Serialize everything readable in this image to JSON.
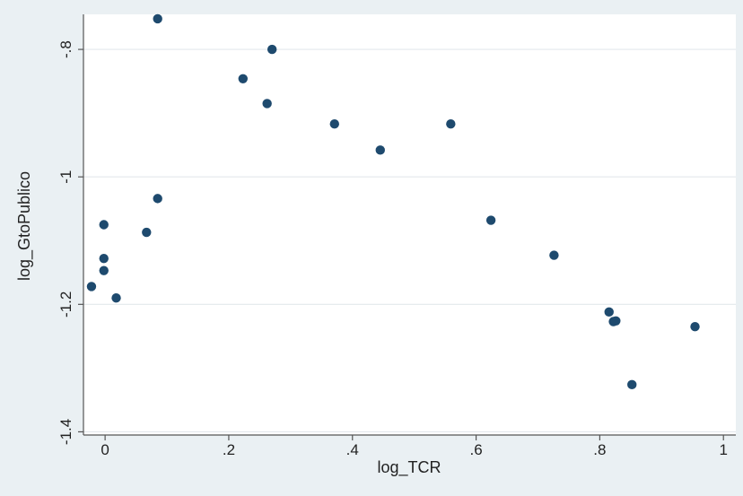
{
  "chart_data": {
    "type": "scatter",
    "xlabel": "log_TCR",
    "ylabel": "log_GtoPublico",
    "xlim": [
      -0.035,
      1.02
    ],
    "ylim": [
      -1.405,
      -0.745
    ],
    "x_ticks": [
      0,
      0.2,
      0.4,
      0.6,
      0.8,
      1
    ],
    "x_tick_labels": [
      "0",
      ".2",
      ".4",
      ".6",
      ".8",
      "1"
    ],
    "y_ticks": [
      -1.4,
      -1.2,
      -1,
      -0.8
    ],
    "y_tick_labels": [
      "-1.4",
      "-1.2",
      "-1",
      "-.8"
    ],
    "grid": "horizontal",
    "legend": "none",
    "marker_color": "#1e4a6e",
    "points": [
      {
        "x": -0.022,
        "y": -1.172
      },
      {
        "x": -0.002,
        "y": -1.075
      },
      {
        "x": -0.002,
        "y": -1.128
      },
      {
        "x": -0.002,
        "y": -1.147
      },
      {
        "x": 0.018,
        "y": -1.19
      },
      {
        "x": 0.067,
        "y": -1.087
      },
      {
        "x": 0.085,
        "y": -1.034
      },
      {
        "x": 0.085,
        "y": -0.752
      },
      {
        "x": 0.223,
        "y": -0.846
      },
      {
        "x": 0.262,
        "y": -0.885
      },
      {
        "x": 0.27,
        "y": -0.8
      },
      {
        "x": 0.371,
        "y": -0.917
      },
      {
        "x": 0.445,
        "y": -0.958
      },
      {
        "x": 0.559,
        "y": -0.917
      },
      {
        "x": 0.624,
        "y": -1.068
      },
      {
        "x": 0.726,
        "y": -1.123
      },
      {
        "x": 0.815,
        "y": -1.212
      },
      {
        "x": 0.822,
        "y": -1.227
      },
      {
        "x": 0.826,
        "y": -1.226
      },
      {
        "x": 0.852,
        "y": -1.326
      },
      {
        "x": 0.954,
        "y": -1.235
      }
    ]
  }
}
